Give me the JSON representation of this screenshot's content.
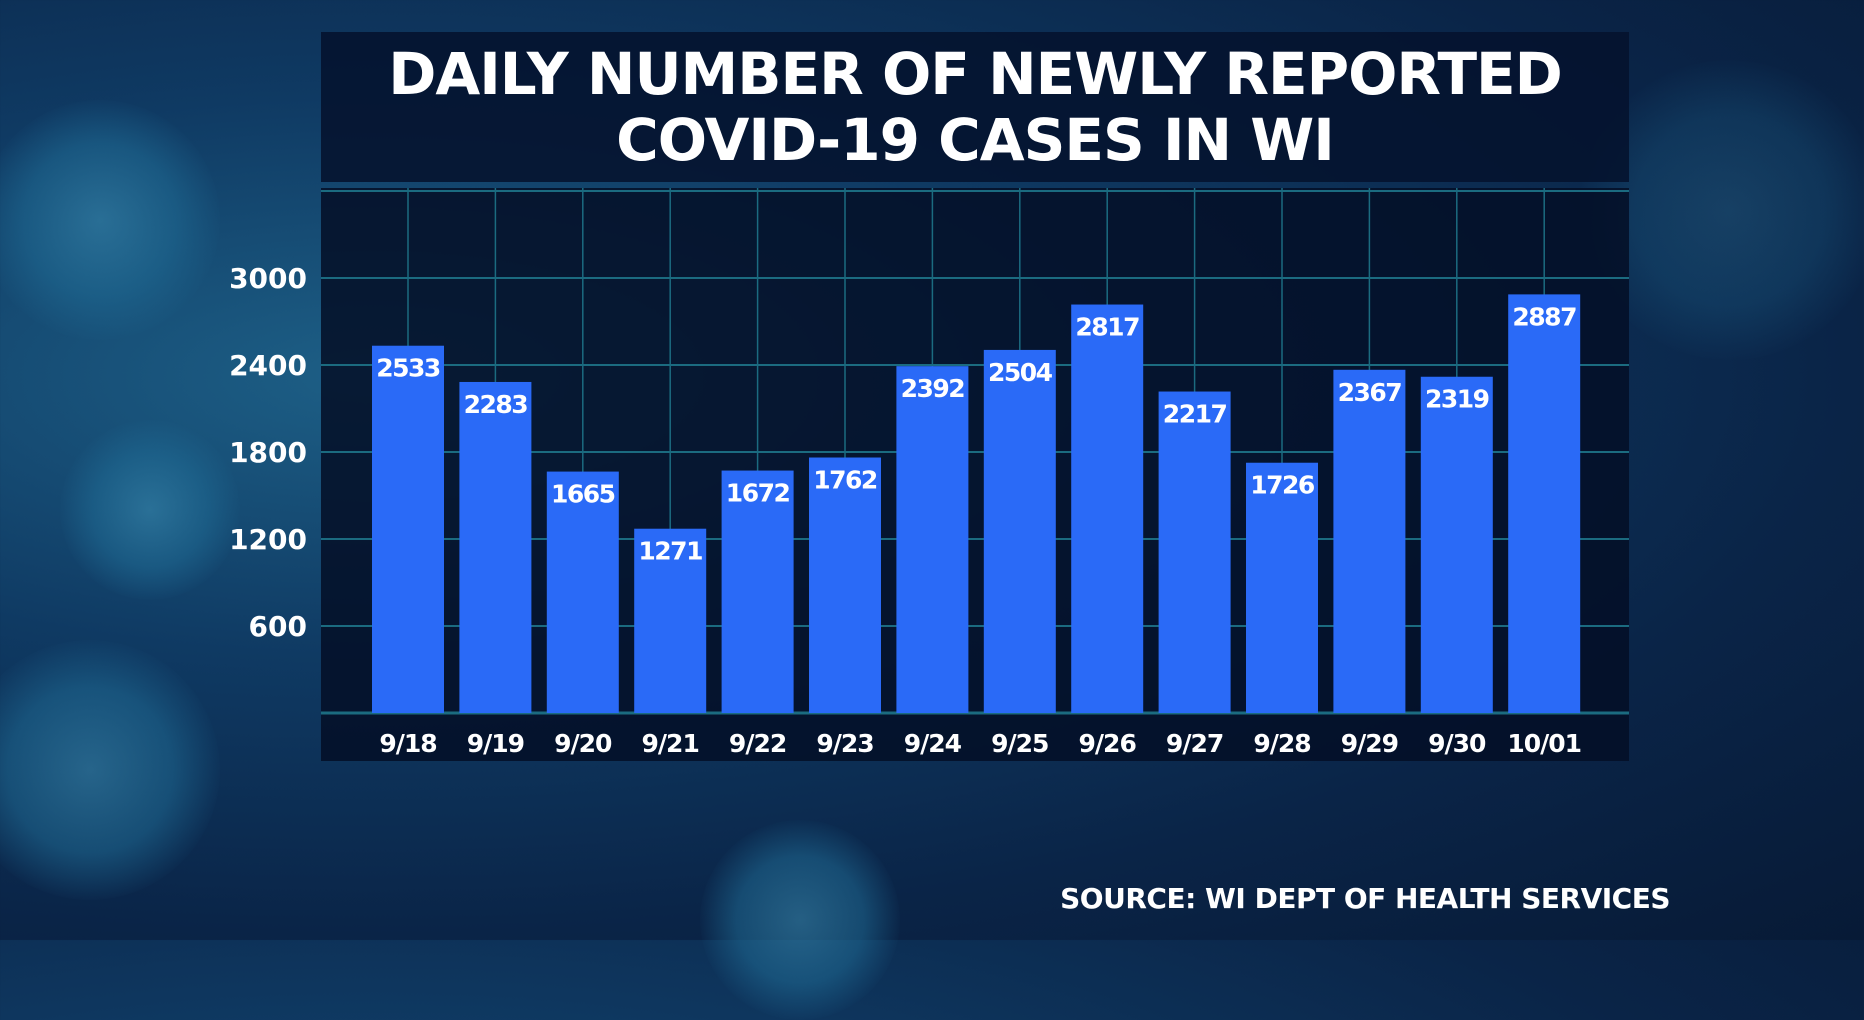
{
  "chart_data": {
    "type": "bar",
    "title": [
      "DAILY NUMBER OF NEWLY REPORTED",
      "COVID-19 CASES IN WI"
    ],
    "categories": [
      "9/18",
      "9/19",
      "9/20",
      "9/21",
      "9/22",
      "9/23",
      "9/24",
      "9/25",
      "9/26",
      "9/27",
      "9/28",
      "9/29",
      "9/30",
      "10/01"
    ],
    "values": [
      2533,
      2283,
      1665,
      1271,
      1672,
      1762,
      2392,
      2504,
      2817,
      2217,
      1726,
      2367,
      2319,
      2887
    ],
    "yticks": [
      600,
      1200,
      1800,
      2400,
      3000
    ],
    "ylim": [
      0,
      3600
    ],
    "xlabel": "",
    "ylabel": "",
    "grid": true,
    "bar_color": "#2a6af7",
    "grid_color": "#1b6b80",
    "source": "SOURCE: WI DEPT OF HEALTH SERVICES"
  }
}
